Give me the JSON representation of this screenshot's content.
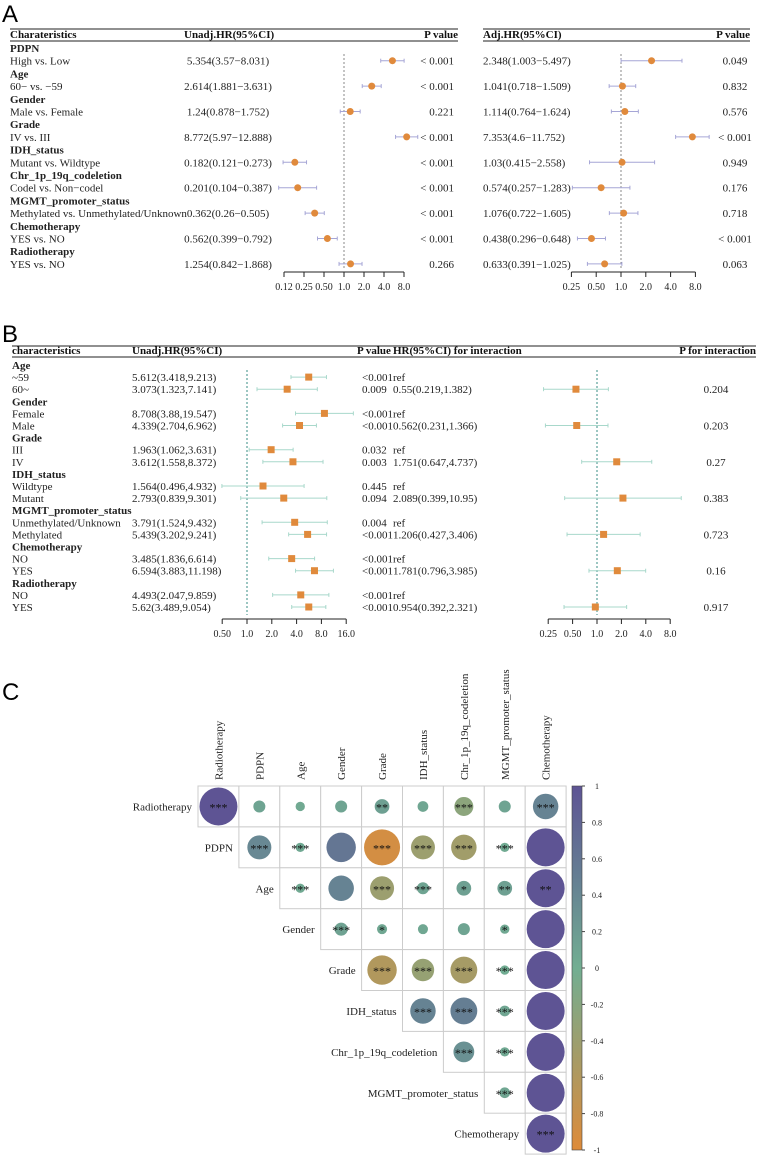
{
  "colors": {
    "point": "#E08A3C",
    "ci_a": "#A6A6D6",
    "ci_b": "#A8D8CB",
    "ref_b": "#3A8C86",
    "grid": "#CCCCCC",
    "pos": "#5E5494",
    "mid": "#72AE92",
    "neg": "#DE8B3A",
    "half_pos": "#657E93",
    "half_neg": "#A69B66"
  },
  "chart_data": [
    {
      "type": "forest",
      "panel": "A",
      "left": {
        "headers": [
          "Charateristics",
          "Unadj.HR(95%CI)",
          "P value"
        ],
        "ticks": [
          0.125,
          0.25,
          0.5,
          1,
          2,
          4,
          8
        ],
        "tick_labels": [
          "0.12",
          "0.25",
          "0.50",
          "1.0",
          "2.0",
          "4.0",
          "8.0"
        ],
        "ref": 1
      },
      "right": {
        "headers": [
          "Adj.HR(95%CI)",
          "P value"
        ],
        "ticks": [
          0.25,
          0.5,
          1,
          2,
          4,
          8
        ],
        "tick_labels": [
          "0.25",
          "0.50",
          "1.0",
          "2.0",
          "4.0",
          "8.0"
        ],
        "ref": 1
      },
      "rows": [
        {
          "group": "PDPN",
          "comparison": "High vs. Low",
          "unadj": {
            "hr": 5.354,
            "lo": 3.57,
            "hi": 8.031,
            "text": "5.354(3.57−8.031)",
            "p": "< 0.001"
          },
          "adj": {
            "hr": 2.348,
            "lo": 1.003,
            "hi": 5.497,
            "text": "2.348(1.003−5.497)",
            "p": "0.049"
          }
        },
        {
          "group": "Age",
          "comparison": "60− vs. −59",
          "unadj": {
            "hr": 2.614,
            "lo": 1.881,
            "hi": 3.631,
            "text": "2.614(1.881−3.631)",
            "p": "< 0.001"
          },
          "adj": {
            "hr": 1.041,
            "lo": 0.718,
            "hi": 1.509,
            "text": "1.041(0.718−1.509)",
            "p": "0.832"
          }
        },
        {
          "group": "Gender",
          "comparison": "Male vs. Female",
          "unadj": {
            "hr": 1.24,
            "lo": 0.878,
            "hi": 1.752,
            "text": "1.24(0.878−1.752)",
            "p": "0.221"
          },
          "adj": {
            "hr": 1.114,
            "lo": 0.764,
            "hi": 1.624,
            "text": "1.114(0.764−1.624)",
            "p": "0.576"
          }
        },
        {
          "group": "Grade",
          "comparison": "IV vs. III",
          "unadj": {
            "hr": 8.772,
            "lo": 5.97,
            "hi": 12.888,
            "text": "8.772(5.97−12.888)",
            "p": "< 0.001"
          },
          "adj": {
            "hr": 7.353,
            "lo": 4.6,
            "hi": 11.752,
            "text": "7.353(4.6−11.752)",
            "p": "< 0.001"
          }
        },
        {
          "group": "IDH_status",
          "comparison": "Mutant vs. Wildtype",
          "unadj": {
            "hr": 0.182,
            "lo": 0.121,
            "hi": 0.273,
            "text": "0.182(0.121−0.273)",
            "p": "< 0.001"
          },
          "adj": {
            "hr": 1.03,
            "lo": 0.415,
            "hi": 2.558,
            "text": "1.03(0.415−2.558)",
            "p": "0.949"
          }
        },
        {
          "group": "Chr_1p_19q_codeletion",
          "comparison": "Codel vs. Non−codel",
          "unadj": {
            "hr": 0.201,
            "lo": 0.104,
            "hi": 0.387,
            "text": "0.201(0.104−0.387)",
            "p": "< 0.001"
          },
          "adj": {
            "hr": 0.574,
            "lo": 0.257,
            "hi": 1.283,
            "text": "0.574(0.257−1.283)",
            "p": "0.176"
          }
        },
        {
          "group": "MGMT_promoter_status",
          "comparison": "Methylated vs. Unmethylated/Unknown",
          "unadj": {
            "hr": 0.362,
            "lo": 0.26,
            "hi": 0.505,
            "text": "0.362(0.26−0.505)",
            "p": "< 0.001"
          },
          "adj": {
            "hr": 1.076,
            "lo": 0.722,
            "hi": 1.605,
            "text": "1.076(0.722−1.605)",
            "p": "0.718"
          }
        },
        {
          "group": "Chemotherapy",
          "comparison": "YES vs. NO",
          "unadj": {
            "hr": 0.562,
            "lo": 0.399,
            "hi": 0.792,
            "text": "0.562(0.399−0.792)",
            "p": "< 0.001"
          },
          "adj": {
            "hr": 0.438,
            "lo": 0.296,
            "hi": 0.648,
            "text": "0.438(0.296−0.648)",
            "p": "< 0.001"
          }
        },
        {
          "group": "Radiotherapy",
          "comparison": "YES vs. NO",
          "unadj": {
            "hr": 1.254,
            "lo": 0.842,
            "hi": 1.868,
            "text": "1.254(0.842−1.868)",
            "p": "0.266"
          },
          "adj": {
            "hr": 0.633,
            "lo": 0.391,
            "hi": 1.025,
            "text": "0.633(0.391−1.025)",
            "p": "0.063"
          }
        }
      ]
    },
    {
      "type": "forest",
      "panel": "B",
      "left": {
        "headers": [
          "characteristics",
          "Unadj.HR(95%CI)",
          "P value"
        ],
        "ticks": [
          0.5,
          1,
          2,
          4,
          8,
          16
        ],
        "tick_labels": [
          "0.50",
          "1.0",
          "2.0",
          "4.0",
          "8.0",
          "16.0"
        ],
        "ref": 1
      },
      "right": {
        "headers": [
          "HR(95%CI) for interaction",
          "P for interaction"
        ],
        "ticks": [
          0.25,
          0.5,
          1,
          2,
          4,
          8
        ],
        "tick_labels": [
          "0.25",
          "0.50",
          "1.0",
          "2.0",
          "4.0",
          "8.0"
        ],
        "ref": 1
      },
      "groups": [
        {
          "group": "Age",
          "levels": [
            {
              "level": "~59",
              "hr": 5.612,
              "lo": 3.418,
              "hi": 9.213,
              "text": "5.612(3.418,9.213)",
              "p": "<0.001",
              "int": null,
              "int_text": "ref",
              "int_p": ""
            },
            {
              "level": "60~",
              "hr": 3.073,
              "lo": 1.323,
              "hi": 7.141,
              "text": "3.073(1.323,7.141)",
              "p": "0.009",
              "int": {
                "hr": 0.55,
                "lo": 0.219,
                "hi": 1.382
              },
              "int_text": "0.55(0.219,1.382)",
              "int_p": "0.204"
            }
          ]
        },
        {
          "group": "Gender",
          "levels": [
            {
              "level": "Female",
              "hr": 8.708,
              "lo": 3.88,
              "hi": 19.547,
              "text": "8.708(3.88,19.547)",
              "p": "<0.001",
              "int": null,
              "int_text": "ref",
              "int_p": ""
            },
            {
              "level": "Male",
              "hr": 4.339,
              "lo": 2.704,
              "hi": 6.962,
              "text": "4.339(2.704,6.962)",
              "p": "<0.001",
              "int": {
                "hr": 0.562,
                "lo": 0.231,
                "hi": 1.366
              },
              "int_text": "0.562(0.231,1.366)",
              "int_p": "0.203"
            }
          ]
        },
        {
          "group": "Grade",
          "levels": [
            {
              "level": "III",
              "hr": 1.963,
              "lo": 1.062,
              "hi": 3.631,
              "text": "1.963(1.062,3.631)",
              "p": "0.032",
              "int": null,
              "int_text": "ref",
              "int_p": ""
            },
            {
              "level": "IV",
              "hr": 3.612,
              "lo": 1.558,
              "hi": 8.372,
              "text": "3.612(1.558,8.372)",
              "p": "0.003",
              "int": {
                "hr": 1.751,
                "lo": 0.647,
                "hi": 4.737
              },
              "int_text": "1.751(0.647,4.737)",
              "int_p": "0.27"
            }
          ]
        },
        {
          "group": "IDH_status",
          "levels": [
            {
              "level": "Wildtype",
              "hr": 1.564,
              "lo": 0.496,
              "hi": 4.932,
              "text": "1.564(0.496,4.932)",
              "p": "0.445",
              "int": null,
              "int_text": "ref",
              "int_p": ""
            },
            {
              "level": "Mutant",
              "hr": 2.793,
              "lo": 0.839,
              "hi": 9.301,
              "text": "2.793(0.839,9.301)",
              "p": "0.094",
              "int": {
                "hr": 2.089,
                "lo": 0.399,
                "hi": 10.95
              },
              "int_text": "2.089(0.399,10.95)",
              "int_p": "0.383"
            }
          ]
        },
        {
          "group": "MGMT_promoter_status",
          "levels": [
            {
              "level": "Unmethylated/Unknown",
              "hr": 3.791,
              "lo": 1.524,
              "hi": 9.432,
              "text": "3.791(1.524,9.432)",
              "p": "0.004",
              "int": null,
              "int_text": "ref",
              "int_p": ""
            },
            {
              "level": "Methylated",
              "hr": 5.439,
              "lo": 3.202,
              "hi": 9.241,
              "text": "5.439(3.202,9.241)",
              "p": "<0.001",
              "int": {
                "hr": 1.206,
                "lo": 0.427,
                "hi": 3.406
              },
              "int_text": "1.206(0.427,3.406)",
              "int_p": "0.723"
            }
          ]
        },
        {
          "group": "Chemotherapy",
          "levels": [
            {
              "level": "NO",
              "hr": 3.485,
              "lo": 1.836,
              "hi": 6.614,
              "text": "3.485(1.836,6.614)",
              "p": "<0.001",
              "int": null,
              "int_text": "ref",
              "int_p": ""
            },
            {
              "level": "YES",
              "hr": 6.594,
              "lo": 3.883,
              "hi": 11.198,
              "text": "6.594(3.883,11.198)",
              "p": "<0.001",
              "int": {
                "hr": 1.781,
                "lo": 0.796,
                "hi": 3.985
              },
              "int_text": "1.781(0.796,3.985)",
              "int_p": "0.16"
            }
          ]
        },
        {
          "group": "Radiotherapy",
          "levels": [
            {
              "level": "NO",
              "hr": 4.493,
              "lo": 2.047,
              "hi": 9.859,
              "text": "4.493(2.047,9.859)",
              "p": "<0.001",
              "int": null,
              "int_text": "ref",
              "int_p": ""
            },
            {
              "level": "YES",
              "hr": 5.62,
              "lo": 3.489,
              "hi": 9.054,
              "text": "5.62(3.489,9.054)",
              "p": "<0.001",
              "int": {
                "hr": 0.954,
                "lo": 0.392,
                "hi": 2.321
              },
              "int_text": "0.954(0.392,2.321)",
              "int_p": "0.917"
            }
          ]
        }
      ]
    },
    {
      "type": "heatmap",
      "panel": "C",
      "variables": [
        "Radiotherapy",
        "PDPN",
        "Age",
        "Gender",
        "Grade",
        "IDH_status",
        "Chr_1p_19q_codeletion",
        "MGMT_promoter_status",
        "Chemotherapy"
      ],
      "upper_triangle": [
        [
          1,
          0.1,
          0.05,
          0.1,
          0.15,
          0.08,
          -0.25,
          0.1,
          0.45
        ],
        [
          0.4,
          0.06,
          0.6,
          -0.9,
          -0.4,
          -0.45,
          0.04
        ],
        [
          0.05,
          0.45,
          -0.4,
          0.1,
          0.15,
          0.15
        ],
        [
          0.12,
          0.07,
          0.07,
          0.1,
          0.06
        ],
        [
          -0.6,
          -0.35,
          -0.5,
          0.02
        ],
        [
          0.45,
          0.5,
          0.08
        ],
        [
          0.3,
          0.06
        ],
        [
          0.08
        ],
        []
      ],
      "significance": [
        [
          "***",
          "",
          "",
          "",
          "**",
          "",
          "***",
          "",
          "***"
        ],
        [
          "***",
          "***",
          "",
          "***",
          "***",
          "***",
          "***",
          ""
        ],
        [
          "***",
          "",
          "***",
          "***",
          "*",
          "**",
          "**"
        ],
        [
          "***",
          "*",
          "",
          "",
          "*",
          ""
        ],
        [
          "***",
          "***",
          "***",
          "***",
          ""
        ],
        [
          "***",
          "***",
          "***",
          ""
        ],
        [
          "***",
          "***",
          ""
        ],
        [
          "***",
          ""
        ],
        [
          "***"
        ]
      ],
      "colorbar": {
        "range": [
          -1,
          1
        ],
        "tick_labels": [
          "1",
          "0.8",
          "0.6",
          "0.4",
          "0.2",
          "0",
          "-0.2",
          "-0.4",
          "-0.6",
          "-0.8",
          "-1"
        ]
      }
    }
  ],
  "panel_labels": [
    "A",
    "B",
    "C"
  ]
}
